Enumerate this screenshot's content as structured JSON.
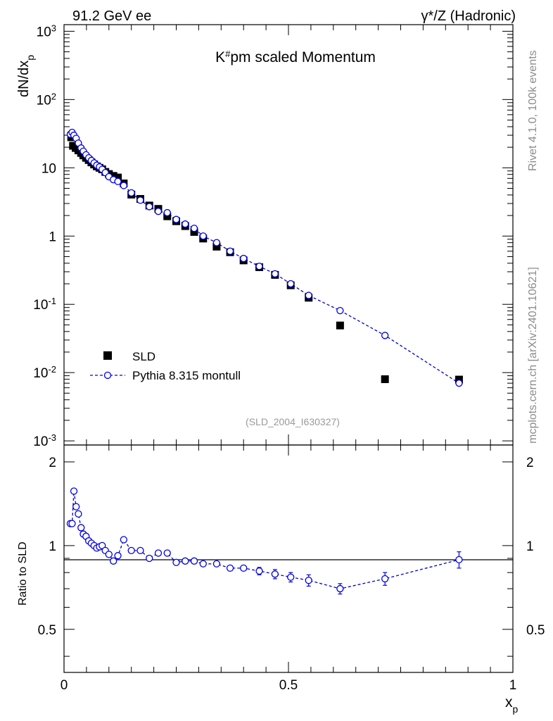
{
  "header": {
    "left": "91.2 GeV ee",
    "right": "γ*/Z (Hadronic)"
  },
  "side_labels": {
    "rivet": "Rivet 4.1.0,  100k events",
    "mcplots": "mcplots.cern.ch [arXiv:2401.10621]"
  },
  "colors": {
    "data": "#000000",
    "mc": "#0000dd",
    "gray": "#8c8c8c"
  },
  "chart_data": [
    {
      "type": "scatter",
      "title": "K#pm scaled Momentum",
      "watermark": "(SLD_2004_I630327)",
      "ylabel": "dN/dx_p",
      "xlabel": "x_p",
      "xlim": [
        0,
        1
      ],
      "ylim": [
        0.00087,
        1250
      ],
      "yscale": "log",
      "ytick_labels": [
        "10^-3",
        "10^-2",
        "10^-1",
        "1",
        "10",
        "10^2",
        "10^3"
      ],
      "xtick_labels": [
        "0",
        "0.5",
        "1"
      ],
      "legend_position": "lower-left",
      "series": [
        {
          "name": "SLD",
          "marker": "square",
          "x": [
            0.016,
            0.02,
            0.026,
            0.032,
            0.038,
            0.043,
            0.049,
            0.055,
            0.061,
            0.067,
            0.073,
            0.079,
            0.085,
            0.092,
            0.1,
            0.11,
            0.12,
            0.133,
            0.15,
            0.17,
            0.19,
            0.21,
            0.23,
            0.25,
            0.27,
            0.29,
            0.31,
            0.34,
            0.37,
            0.4,
            0.435,
            0.47,
            0.505,
            0.545,
            0.615,
            0.715,
            0.88
          ],
          "y": [
            28,
            21,
            19.5,
            18,
            16.5,
            15.2,
            14,
            13,
            12,
            11.2,
            10.5,
            10,
            9.5,
            8.7,
            8.1,
            7.6,
            7.2,
            5.9,
            4.05,
            3.5,
            2.8,
            2.5,
            1.95,
            1.65,
            1.4,
            1.15,
            0.92,
            0.7,
            0.58,
            0.44,
            0.35,
            0.27,
            0.19,
            0.125,
            0.049,
            0.008,
            0.0079
          ]
        },
        {
          "name": "Pythia 8.315 montull",
          "marker": "open-circle",
          "line": "dashed",
          "x": [
            0.014,
            0.018,
            0.022,
            0.027,
            0.032,
            0.038,
            0.043,
            0.049,
            0.055,
            0.061,
            0.067,
            0.073,
            0.079,
            0.085,
            0.092,
            0.1,
            0.11,
            0.12,
            0.133,
            0.15,
            0.17,
            0.19,
            0.21,
            0.23,
            0.25,
            0.27,
            0.29,
            0.31,
            0.34,
            0.37,
            0.4,
            0.435,
            0.47,
            0.505,
            0.545,
            0.615,
            0.715,
            0.88
          ],
          "y": [
            31,
            33,
            30,
            27,
            23,
            19.5,
            17.5,
            15.5,
            14,
            12.8,
            11.8,
            10.9,
            10.3,
            9.5,
            8.5,
            7.4,
            6.7,
            6.3,
            5.5,
            4.3,
            3.35,
            2.7,
            2.3,
            2.2,
            1.75,
            1.5,
            1.3,
            1.0,
            0.8,
            0.6,
            0.47,
            0.36,
            0.28,
            0.2,
            0.135,
            0.081,
            0.035,
            0.007
          ]
        }
      ],
      "legend": [
        "SLD",
        "Pythia 8.315 montull"
      ]
    },
    {
      "type": "scatter",
      "ylabel": "Ratio to SLD",
      "xlabel": "x_p",
      "xlim": [
        0,
        1
      ],
      "ylim": [
        0.35,
        2.3
      ],
      "yscale": "log",
      "ytick_labels": [
        "0.5",
        "1",
        "2"
      ],
      "reference_line": 1,
      "series": [
        {
          "name": "Pythia 8.315 montull / SLD",
          "marker": "open-circle",
          "line": "dashed",
          "x": [
            0.014,
            0.018,
            0.022,
            0.027,
            0.032,
            0.038,
            0.043,
            0.049,
            0.055,
            0.061,
            0.067,
            0.073,
            0.079,
            0.085,
            0.092,
            0.1,
            0.11,
            0.12,
            0.133,
            0.15,
            0.17,
            0.19,
            0.21,
            0.23,
            0.25,
            0.27,
            0.29,
            0.31,
            0.34,
            0.37,
            0.4,
            0.435,
            0.47,
            0.505,
            0.545,
            0.615,
            0.715,
            0.88
          ],
          "y": [
            1.2,
            1.2,
            1.57,
            1.38,
            1.3,
            1.16,
            1.1,
            1.08,
            1.04,
            1.02,
            1.0,
            0.98,
            0.99,
            1.0,
            0.96,
            0.93,
            0.88,
            0.92,
            1.05,
            0.96,
            0.96,
            0.9,
            0.94,
            0.94,
            0.87,
            0.88,
            0.88,
            0.86,
            0.86,
            0.83,
            0.83,
            0.81,
            0.79,
            0.77,
            0.75,
            0.7,
            0.76,
            0.89
          ],
          "y_err": [
            0.02,
            0.02,
            0.03,
            0.02,
            0.02,
            0.02,
            0.02,
            0.02,
            0.02,
            0.02,
            0.02,
            0.02,
            0.02,
            0.02,
            0.02,
            0.02,
            0.02,
            0.02,
            0.02,
            0.02,
            0.02,
            0.02,
            0.02,
            0.02,
            0.02,
            0.02,
            0.02,
            0.02,
            0.02,
            0.02,
            0.02,
            0.025,
            0.03,
            0.03,
            0.035,
            0.03,
            0.04,
            0.06
          ]
        }
      ]
    }
  ]
}
